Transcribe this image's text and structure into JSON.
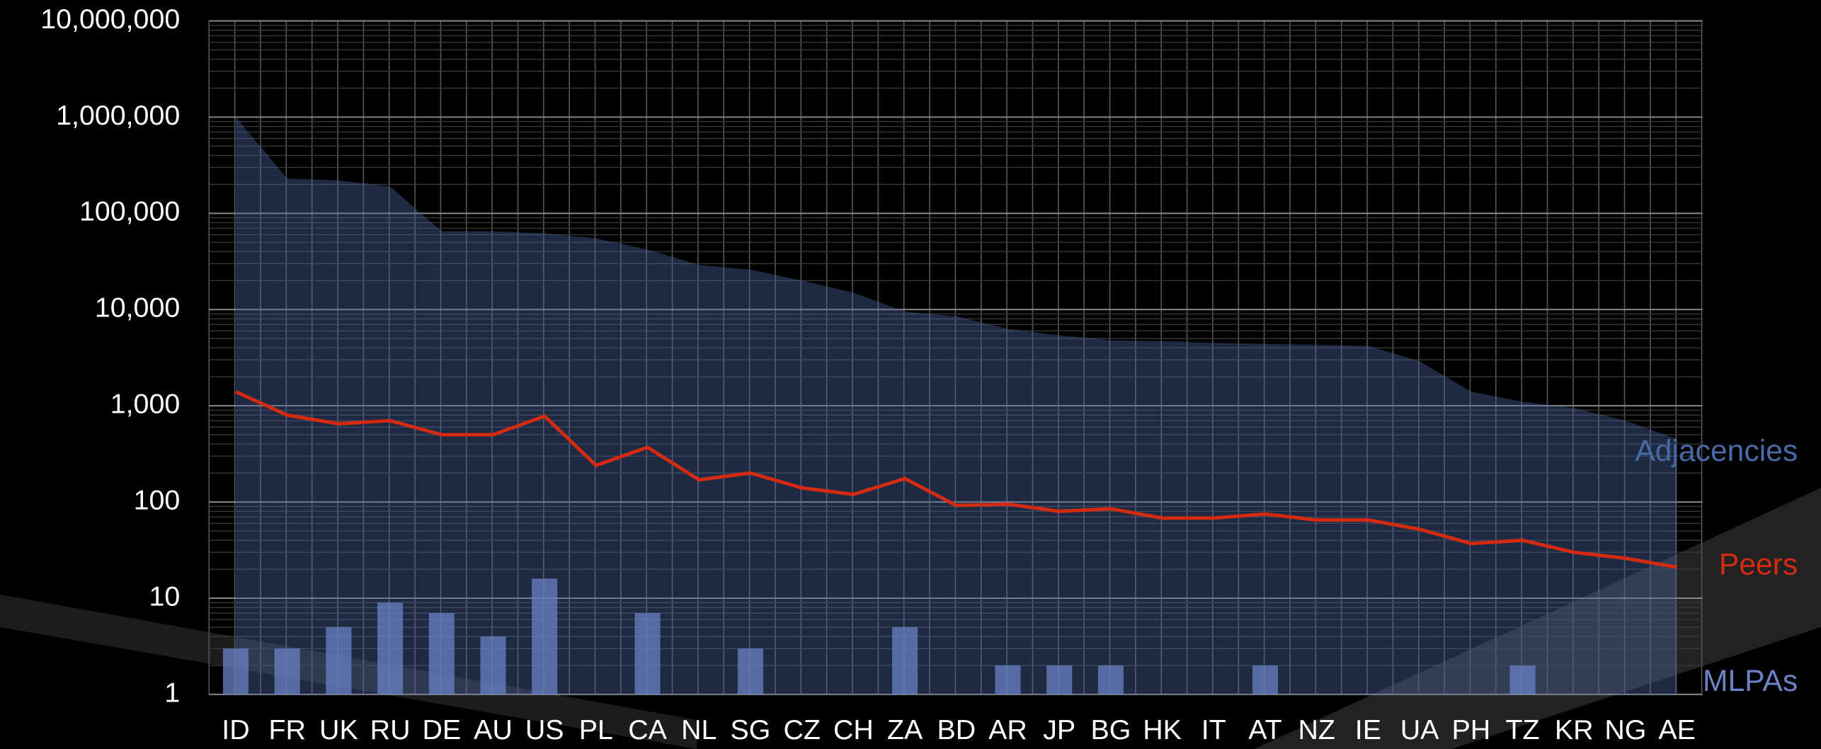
{
  "chart_data": {
    "type": "mixed",
    "categories": [
      "ID",
      "FR",
      "UK",
      "RU",
      "DE",
      "AU",
      "US",
      "PL",
      "CA",
      "NL",
      "SG",
      "CZ",
      "CH",
      "ZA",
      "BD",
      "AR",
      "JP",
      "BG",
      "HK",
      "IT",
      "AT",
      "NZ",
      "IE",
      "UA",
      "PH",
      "TZ",
      "KR",
      "NG",
      "AE"
    ],
    "log_scale": true,
    "grid": true,
    "ylim": [
      1,
      10000000
    ],
    "yticks": [
      1,
      10,
      100,
      {
        "value": 1000,
        "label": "1,000"
      },
      {
        "value": 10000,
        "label": "10,000"
      },
      {
        "value": 100000,
        "label": "100,000"
      },
      {
        "value": 1000000,
        "label": "1,000,000"
      },
      {
        "value": 10000000,
        "label": "10,000,000"
      }
    ],
    "series": [
      {
        "name": "Adjacencies",
        "type": "area",
        "color": "#4a6aa6",
        "values": [
          1000000,
          230000,
          220000,
          190000,
          65000,
          65000,
          62000,
          55000,
          42000,
          29000,
          26000,
          20000,
          15000,
          9500,
          8500,
          6300,
          5400,
          4800,
          4700,
          4500,
          4400,
          4300,
          4200,
          2900,
          1400,
          1100,
          950,
          700,
          450
        ]
      },
      {
        "name": "Peers",
        "type": "line",
        "color": "#d42a12",
        "values": [
          1400,
          800,
          650,
          700,
          500,
          500,
          780,
          240,
          370,
          170,
          200,
          140,
          120,
          175,
          92,
          95,
          80,
          85,
          68,
          68,
          75,
          65,
          65,
          52,
          37,
          40,
          30,
          26,
          21
        ]
      },
      {
        "name": "MLPAs",
        "type": "bar",
        "color": "#6b82c4",
        "values": [
          3,
          3,
          5,
          9,
          7,
          4,
          16,
          null,
          7,
          null,
          3,
          null,
          null,
          5,
          null,
          2,
          2,
          2,
          null,
          null,
          2,
          null,
          null,
          null,
          null,
          2,
          null,
          null,
          null
        ]
      }
    ]
  }
}
